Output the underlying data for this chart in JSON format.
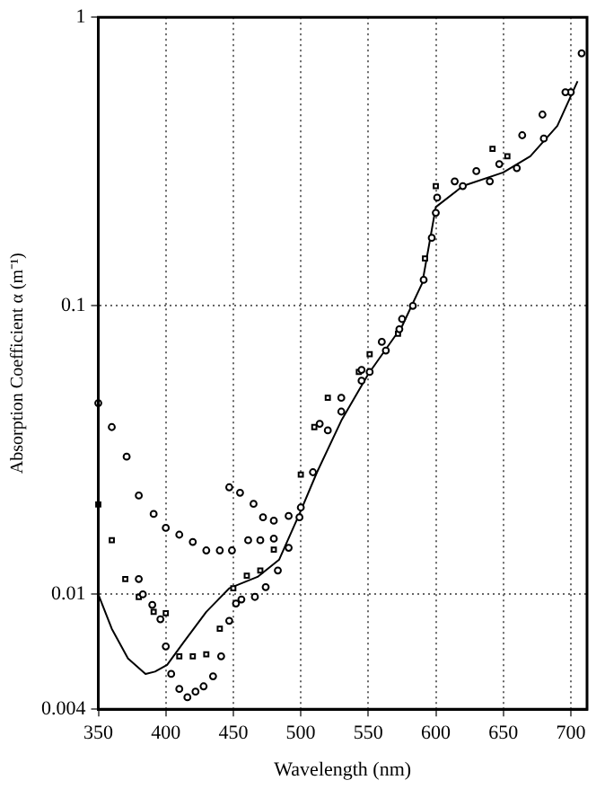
{
  "chart_data": {
    "type": "scatter",
    "xlabel": "Wavelength (nm)",
    "ylabel": "Absorption Coefficient α (m⁻¹)",
    "log": "y",
    "grid": true,
    "legend": false,
    "xlim": [
      350,
      712
    ],
    "xticks": [
      350,
      400,
      450,
      500,
      550,
      600,
      650,
      700
    ],
    "ylim": [
      0.004,
      1
    ],
    "yticks": [
      0.004,
      0.01,
      0.1,
      1
    ],
    "series": [
      {
        "type": "scatter",
        "marker": "circle",
        "color": "#000000",
        "x": [
          380,
          383,
          390,
          396,
          400,
          404,
          410,
          416,
          422,
          428,
          435,
          441,
          447,
          452,
          456,
          466,
          474,
          483,
          491,
          499,
          509,
          514,
          530,
          545,
          551,
          563,
          573,
          583,
          591,
          597,
          601,
          614,
          630,
          647,
          664,
          679,
          696,
          708
        ],
        "values": [
          0.0113,
          0.01,
          0.0092,
          0.0082,
          0.0066,
          0.0053,
          0.0047,
          0.0044,
          0.0046,
          0.0048,
          0.0052,
          0.0061,
          0.0081,
          0.0093,
          0.0096,
          0.0098,
          0.0106,
          0.0121,
          0.0145,
          0.0185,
          0.0265,
          0.039,
          0.043,
          0.055,
          0.059,
          0.07,
          0.083,
          0.1,
          0.123,
          0.172,
          0.237,
          0.27,
          0.293,
          0.31,
          0.39,
          0.46,
          0.55,
          0.75
        ]
      },
      {
        "type": "scatter",
        "marker": "circle",
        "color": "#000000",
        "x": [
          350,
          360,
          371,
          380,
          391,
          400,
          410,
          420,
          430,
          440,
          449,
          461,
          470,
          480,
          447,
          455,
          465,
          472,
          480,
          491,
          500,
          509,
          520,
          530,
          545,
          560,
          575,
          590,
          600,
          620,
          640,
          660,
          680,
          700
        ],
        "values": [
          0.046,
          0.038,
          0.03,
          0.022,
          0.019,
          0.017,
          0.0161,
          0.0152,
          0.0142,
          0.0142,
          0.0142,
          0.0154,
          0.0154,
          0.0156,
          0.0235,
          0.0225,
          0.0206,
          0.0185,
          0.018,
          0.0187,
          0.02,
          null,
          0.037,
          0.048,
          0.06,
          0.075,
          0.09,
          null,
          0.21,
          0.26,
          0.27,
          0.3,
          0.38,
          0.55
        ]
      },
      {
        "type": "scatter",
        "marker": "square",
        "color": "#000000",
        "x": [
          350,
          360,
          370,
          380,
          391,
          400,
          410,
          420,
          430,
          440,
          450,
          460,
          470,
          480,
          500,
          510,
          520,
          543,
          551,
          572,
          592,
          600,
          642,
          653
        ],
        "values": [
          0.0205,
          0.0154,
          0.0113,
          0.0098,
          0.0087,
          0.0086,
          0.0061,
          0.0061,
          0.0062,
          0.0076,
          0.0105,
          0.0116,
          0.0121,
          0.0143,
          0.026,
          0.038,
          0.048,
          0.059,
          0.068,
          0.08,
          0.146,
          0.26,
          0.35,
          0.33
        ]
      },
      {
        "type": "line",
        "marker": "none",
        "color": "#000000",
        "x": [
          350,
          360,
          372,
          385,
          392,
          401,
          413,
          430,
          447,
          468,
          484,
          499,
          512,
          530,
          550,
          575,
          590,
          600,
          620,
          650,
          670,
          690,
          705
        ],
        "values": [
          0.01,
          0.0076,
          0.006,
          0.0053,
          0.0054,
          0.0057,
          0.0068,
          0.0087,
          0.0105,
          0.0115,
          0.0132,
          0.019,
          0.0265,
          0.04,
          0.058,
          0.085,
          0.12,
          0.22,
          0.26,
          0.29,
          0.33,
          0.42,
          0.6
        ]
      }
    ]
  }
}
